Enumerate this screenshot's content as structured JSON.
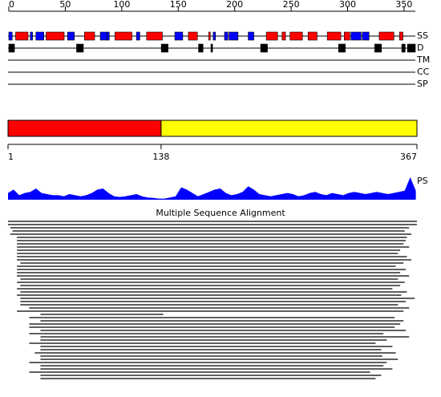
{
  "ruler": {
    "lim": [
      0,
      360
    ],
    "ticks": [
      0,
      50,
      100,
      150,
      200,
      250,
      300,
      350
    ]
  },
  "tracks": [
    "SS",
    "D",
    "TM",
    "CC",
    "SP"
  ],
  "ss": {
    "helix_color": "#ff0000",
    "strand_color": "#0000ff",
    "helix": [
      [
        6,
        17
      ],
      [
        33,
        49
      ],
      [
        67,
        76
      ],
      [
        94,
        109
      ],
      [
        122,
        136
      ],
      [
        159,
        167
      ],
      [
        177,
        178
      ],
      [
        228,
        238
      ],
      [
        242,
        245
      ],
      [
        249,
        260
      ],
      [
        265,
        273
      ],
      [
        282,
        294
      ],
      [
        297,
        302
      ],
      [
        328,
        341
      ],
      [
        346,
        349
      ]
    ],
    "strand": [
      [
        0,
        3
      ],
      [
        19,
        21
      ],
      [
        24,
        31
      ],
      [
        52,
        58
      ],
      [
        81,
        87
      ],
      [
        87,
        89
      ],
      [
        113,
        116
      ],
      [
        147,
        154
      ],
      [
        181,
        183
      ],
      [
        191,
        194
      ],
      [
        195,
        203
      ],
      [
        212,
        217
      ],
      [
        303,
        312
      ],
      [
        313,
        319
      ]
    ]
  },
  "disorder": [
    [
      0,
      5
    ],
    [
      60,
      66
    ],
    [
      135,
      141
    ],
    [
      168,
      172
    ],
    [
      179,
      180
    ],
    [
      223,
      229
    ],
    [
      292,
      298
    ],
    [
      324,
      330
    ],
    [
      348,
      351
    ],
    [
      353,
      360
    ]
  ],
  "domains": {
    "lim": [
      1,
      367
    ],
    "segments": [
      {
        "range": [
          1,
          138
        ],
        "color": "#ff0000"
      },
      {
        "range": [
          138,
          367
        ],
        "color": "#ffff00"
      }
    ],
    "ticks": [
      1,
      138,
      367
    ]
  },
  "profile": {
    "label": "PS",
    "color": "#0000ff",
    "ylim": [
      0,
      1
    ],
    "x": [
      1,
      6,
      11,
      16,
      21,
      26,
      31,
      36,
      41,
      46,
      51,
      56,
      61,
      66,
      71,
      76,
      81,
      86,
      91,
      96,
      101,
      106,
      111,
      116,
      121,
      126,
      131,
      136,
      141,
      146,
      151,
      156,
      161,
      166,
      171,
      176,
      181,
      186,
      191,
      196,
      201,
      206,
      211,
      216,
      221,
      226,
      231,
      236,
      241,
      246,
      251,
      256,
      261,
      266,
      271,
      276,
      281,
      286,
      291,
      296,
      301,
      306,
      311,
      316,
      321,
      326,
      331,
      336,
      341,
      346,
      351,
      356,
      361,
      366
    ],
    "values": [
      0.3,
      0.45,
      0.2,
      0.3,
      0.35,
      0.5,
      0.3,
      0.25,
      0.2,
      0.2,
      0.15,
      0.25,
      0.2,
      0.15,
      0.2,
      0.3,
      0.45,
      0.5,
      0.3,
      0.15,
      0.12,
      0.15,
      0.2,
      0.25,
      0.15,
      0.1,
      0.08,
      0.05,
      0.05,
      0.1,
      0.15,
      0.55,
      0.45,
      0.3,
      0.15,
      0.25,
      0.35,
      0.45,
      0.5,
      0.3,
      0.2,
      0.25,
      0.35,
      0.6,
      0.45,
      0.25,
      0.2,
      0.15,
      0.2,
      0.25,
      0.3,
      0.25,
      0.15,
      0.2,
      0.3,
      0.35,
      0.25,
      0.2,
      0.3,
      0.25,
      0.2,
      0.3,
      0.35,
      0.3,
      0.25,
      0.3,
      0.35,
      0.3,
      0.25,
      0.3,
      0.35,
      0.4,
      1.0,
      0.4
    ]
  },
  "msa": {
    "title": "Multiple Sequence Alignment",
    "rows": [
      [
        1,
        367
      ],
      [
        1,
        367
      ],
      [
        3,
        360
      ],
      [
        5,
        356
      ],
      [
        3,
        362
      ],
      [
        9,
        358
      ],
      [
        9,
        357
      ],
      [
        9,
        355
      ],
      [
        9,
        360
      ],
      [
        9,
        352
      ],
      [
        9,
        350
      ],
      [
        9,
        358
      ],
      [
        9,
        362
      ],
      [
        12,
        355
      ],
      [
        9,
        348
      ],
      [
        9,
        357
      ],
      [
        9,
        352
      ],
      [
        9,
        360
      ],
      [
        12,
        350
      ],
      [
        9,
        356
      ],
      [
        12,
        352
      ],
      [
        9,
        345
      ],
      [
        12,
        358
      ],
      [
        9,
        353
      ],
      [
        12,
        365
      ],
      [
        12,
        357
      ],
      [
        12,
        350
      ],
      [
        20,
        360
      ],
      [
        9,
        355
      ],
      [
        30,
        140
      ],
      [
        20,
        347
      ],
      [
        30,
        355
      ],
      [
        20,
        352
      ],
      [
        20,
        347
      ],
      [
        30,
        357
      ],
      [
        20,
        337
      ],
      [
        30,
        360
      ],
      [
        30,
        340
      ],
      [
        20,
        330
      ],
      [
        30,
        345
      ],
      [
        30,
        335
      ],
      [
        25,
        348
      ],
      [
        30,
        336
      ],
      [
        30,
        350
      ],
      [
        20,
        340
      ],
      [
        30,
        337
      ],
      [
        30,
        345
      ],
      [
        20,
        325
      ],
      [
        30,
        335
      ],
      [
        30,
        330
      ]
    ]
  }
}
